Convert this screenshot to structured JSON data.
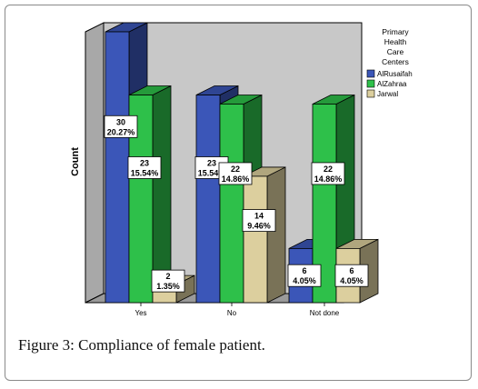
{
  "caption": {
    "label": "Figure 3:",
    "text": "Compliance of female patient."
  },
  "chart_data": {
    "type": "bar",
    "style": "3d-clustered",
    "title": "",
    "xlabel": "",
    "ylabel": "Count",
    "ylim": [
      0,
      30
    ],
    "grid": false,
    "legend_title_lines": [
      "Primary",
      "Health",
      "Care",
      "Centers"
    ],
    "legend_position": "right",
    "categories": [
      "Yes",
      "No",
      "Not done"
    ],
    "series": [
      {
        "name": "AlRusaifah",
        "color": "#3b56b8",
        "values": [
          30,
          23,
          6
        ],
        "labels": [
          "20.27%",
          "15.54%",
          "4.05%"
        ]
      },
      {
        "name": "AlZahraa",
        "color": "#2ec04a",
        "values": [
          23,
          22,
          22
        ],
        "labels": [
          "15.54%",
          "14.86%",
          "14.86%"
        ]
      },
      {
        "name": "Jarwal",
        "color": "#dccf9e",
        "values": [
          2,
          14,
          6
        ],
        "labels": [
          "1.35%",
          "9.46%",
          "4.05%"
        ]
      }
    ]
  }
}
